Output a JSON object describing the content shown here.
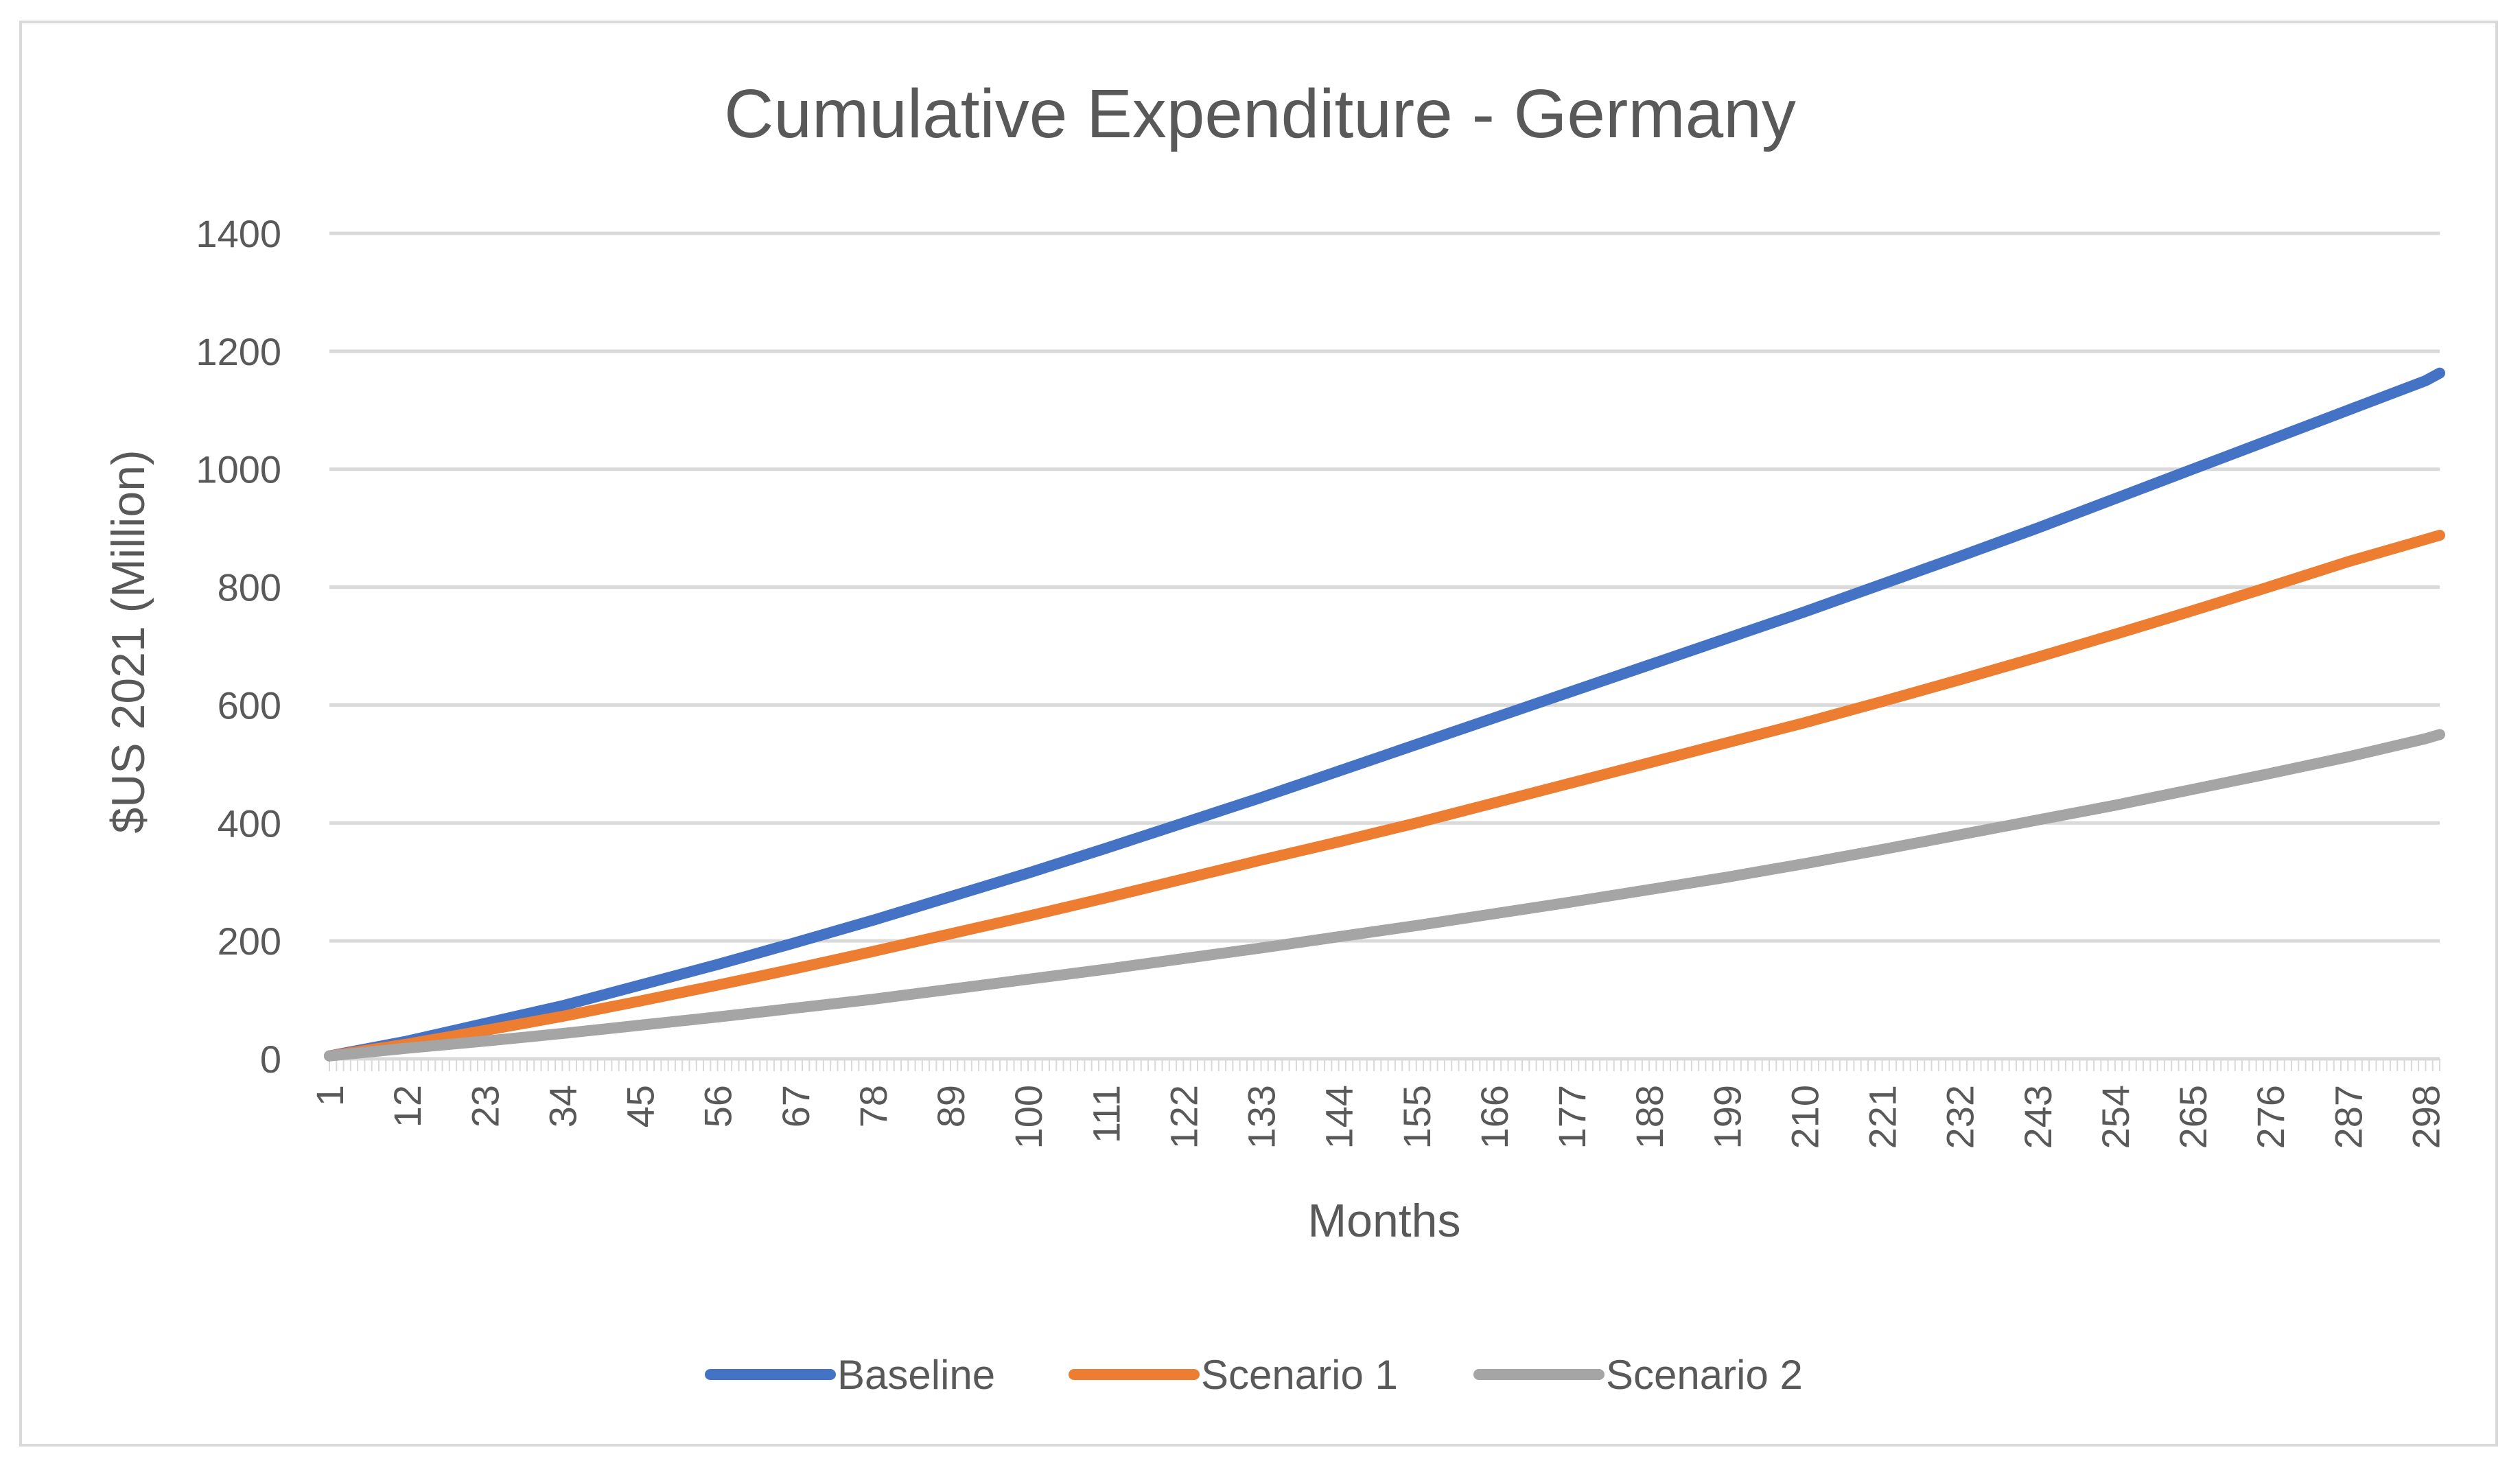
{
  "colors": {
    "baseline": "#4472c4",
    "scenario1": "#ed7d31",
    "scenario2": "#a5a5a5",
    "grid": "#d9d9d9",
    "text": "#595959"
  },
  "chart_data": {
    "type": "line",
    "title": "Cumulative Expenditure - Germany",
    "xlabel": "Months",
    "ylabel": "$US 2021 (Million)",
    "x_range": [
      1,
      300
    ],
    "ylim": [
      0,
      1400
    ],
    "y_ticks": [
      "0",
      "200",
      "400",
      "600",
      "800",
      "1000",
      "1200",
      "1400"
    ],
    "x_tick_labels": [
      "1",
      "12",
      "23",
      "34",
      "45",
      "56",
      "67",
      "78",
      "89",
      "100",
      "111",
      "122",
      "133",
      "144",
      "155",
      "166",
      "177",
      "188",
      "199",
      "210",
      "221",
      "232",
      "243",
      "254",
      "265",
      "276",
      "287",
      "298"
    ],
    "grid": true,
    "legend_position": "bottom",
    "series": [
      {
        "name": "Baseline",
        "color_key": "baseline",
        "points": [
          [
            1,
            5
          ],
          [
            12,
            30
          ],
          [
            23,
            60
          ],
          [
            34,
            90
          ],
          [
            45,
            125
          ],
          [
            56,
            160
          ],
          [
            67,
            197
          ],
          [
            78,
            235
          ],
          [
            89,
            275
          ],
          [
            100,
            315
          ],
          [
            111,
            357
          ],
          [
            122,
            400
          ],
          [
            133,
            443
          ],
          [
            144,
            488
          ],
          [
            155,
            533
          ],
          [
            166,
            578
          ],
          [
            177,
            623
          ],
          [
            188,
            668
          ],
          [
            199,
            713
          ],
          [
            210,
            758
          ],
          [
            221,
            805
          ],
          [
            232,
            852
          ],
          [
            243,
            900
          ],
          [
            254,
            950
          ],
          [
            265,
            1000
          ],
          [
            276,
            1050
          ],
          [
            287,
            1100
          ],
          [
            298,
            1150
          ],
          [
            300,
            1163
          ]
        ]
      },
      {
        "name": "Scenario 1",
        "color_key": "scenario1",
        "points": [
          [
            1,
            5
          ],
          [
            12,
            25
          ],
          [
            23,
            48
          ],
          [
            34,
            72
          ],
          [
            45,
            98
          ],
          [
            56,
            125
          ],
          [
            67,
            153
          ],
          [
            78,
            182
          ],
          [
            89,
            212
          ],
          [
            100,
            242
          ],
          [
            111,
            273
          ],
          [
            122,
            305
          ],
          [
            133,
            337
          ],
          [
            144,
            368
          ],
          [
            155,
            400
          ],
          [
            166,
            434
          ],
          [
            177,
            468
          ],
          [
            188,
            502
          ],
          [
            199,
            536
          ],
          [
            210,
            570
          ],
          [
            221,
            606
          ],
          [
            232,
            643
          ],
          [
            243,
            681
          ],
          [
            254,
            720
          ],
          [
            265,
            760
          ],
          [
            276,
            801
          ],
          [
            287,
            843
          ],
          [
            298,
            881
          ],
          [
            300,
            888
          ]
        ]
      },
      {
        "name": "Scenario 2",
        "color_key": "scenario2",
        "points": [
          [
            1,
            5
          ],
          [
            12,
            18
          ],
          [
            23,
            30
          ],
          [
            34,
            43
          ],
          [
            45,
            57
          ],
          [
            56,
            71
          ],
          [
            67,
            86
          ],
          [
            78,
            101
          ],
          [
            89,
            118
          ],
          [
            100,
            135
          ],
          [
            111,
            152
          ],
          [
            122,
            170
          ],
          [
            133,
            188
          ],
          [
            144,
            207
          ],
          [
            155,
            226
          ],
          [
            166,
            246
          ],
          [
            177,
            266
          ],
          [
            188,
            287
          ],
          [
            199,
            308
          ],
          [
            210,
            331
          ],
          [
            221,
            355
          ],
          [
            232,
            380
          ],
          [
            243,
            405
          ],
          [
            254,
            430
          ],
          [
            265,
            457
          ],
          [
            276,
            484
          ],
          [
            287,
            512
          ],
          [
            298,
            543
          ],
          [
            300,
            550
          ]
        ]
      }
    ]
  }
}
